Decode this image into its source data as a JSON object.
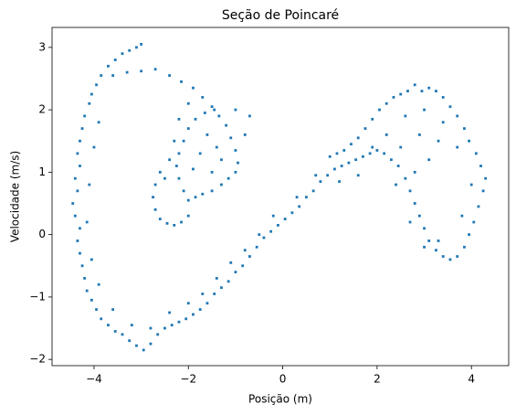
{
  "chart_data": {
    "type": "scatter",
    "title": "Seção de Poincaré",
    "xlabel": "Posição (m)",
    "ylabel": "Velocidade (m/s)",
    "color": "#1f77b4",
    "x": [
      -3.0,
      -3.1,
      -3.25,
      -3.4,
      -3.55,
      -3.7,
      -3.85,
      -3.95,
      -4.05,
      -4.1,
      -4.2,
      -4.25,
      -4.3,
      -4.35,
      -4.3,
      -4.4,
      -4.35,
      -4.45,
      -4.4,
      -4.3,
      -4.35,
      -4.3,
      -4.25,
      -4.2,
      -4.15,
      -4.05,
      -3.95,
      -3.85,
      -3.7,
      -3.55,
      -3.4,
      -3.25,
      -3.1,
      -2.95,
      -2.8,
      -2.65,
      -2.5,
      -2.35,
      -2.2,
      -2.05,
      -1.9,
      -1.75,
      -1.6,
      -1.45,
      -1.3,
      -1.15,
      -1.0,
      -0.85,
      -0.7,
      -0.55,
      -0.4,
      -0.25,
      -0.1,
      0.05,
      0.2,
      0.35,
      0.5,
      0.65,
      0.8,
      0.95,
      1.1,
      1.25,
      1.4,
      1.55,
      1.7,
      1.85,
      2.0,
      2.15,
      2.3,
      2.45,
      2.6,
      2.7,
      2.8,
      2.9,
      3.0,
      3.1,
      3.25,
      3.4,
      3.55,
      3.7,
      3.85,
      3.95,
      4.05,
      4.15,
      4.25,
      4.3,
      4.2,
      4.1,
      3.95,
      3.85,
      3.7,
      3.55,
      3.4,
      3.25,
      3.1,
      2.95,
      2.8,
      2.65,
      2.5,
      2.35,
      2.2,
      2.05,
      1.9,
      1.75,
      1.6,
      1.45,
      1.3,
      1.15,
      1.0,
      -3.9,
      -4.0,
      -4.1,
      -4.15,
      -4.05,
      -3.9,
      -3.6,
      -3.2,
      -2.8,
      -2.4,
      -2.0,
      -1.7,
      -1.4,
      -1.1,
      -0.8,
      -0.5,
      -0.2,
      0.3,
      0.7,
      1.2,
      1.6,
      2.4,
      2.7,
      3.0,
      3.3,
      3.8,
      4.0,
      3.7,
      3.4,
      3.0,
      2.6,
      2.2,
      1.9,
      2.5,
      2.8,
      3.1,
      2.9,
      3.3,
      -3.6,
      -3.3,
      -3.0,
      -2.7,
      -2.4,
      -2.15,
      -1.9,
      -1.7,
      -1.5,
      -1.35,
      -1.2,
      -1.1,
      -1.0,
      -0.95,
      -1.0,
      -1.15,
      -1.3,
      -1.5,
      -1.7,
      -1.85,
      -2.0,
      -2.1,
      -2.2,
      -2.25,
      -2.2,
      -2.1,
      -2.0,
      -1.85,
      -1.65,
      -1.45,
      -1.6,
      -1.4,
      -1.3,
      -1.5,
      -1.75,
      -1.9,
      -0.8,
      -0.7,
      -1.0,
      -2.6,
      -2.7,
      -2.75,
      -2.7,
      -2.6,
      -2.45,
      -2.3,
      -2.15,
      -2.0,
      -2.5,
      -2.4,
      -2.3,
      -2.2,
      -2.0
    ],
    "values": [
      3.05,
      3.0,
      2.95,
      2.9,
      2.8,
      2.7,
      2.55,
      2.4,
      2.25,
      2.1,
      1.9,
      1.7,
      1.5,
      1.3,
      1.1,
      0.9,
      0.7,
      0.5,
      0.3,
      0.1,
      -0.1,
      -0.3,
      -0.5,
      -0.7,
      -0.9,
      -1.05,
      -1.2,
      -1.35,
      -1.45,
      -1.55,
      -1.6,
      -1.7,
      -1.78,
      -1.85,
      -1.75,
      -1.6,
      -1.5,
      -1.45,
      -1.4,
      -1.35,
      -1.28,
      -1.2,
      -1.1,
      -0.95,
      -0.85,
      -0.75,
      -0.6,
      -0.5,
      -0.35,
      -0.2,
      -0.05,
      0.05,
      0.15,
      0.25,
      0.35,
      0.45,
      0.6,
      0.7,
      0.85,
      0.95,
      1.05,
      1.1,
      1.15,
      1.2,
      1.25,
      1.3,
      1.35,
      1.3,
      1.2,
      1.1,
      0.9,
      0.7,
      0.5,
      0.3,
      0.1,
      -0.1,
      -0.25,
      -0.35,
      -0.4,
      -0.35,
      -0.2,
      0.0,
      0.2,
      0.45,
      0.7,
      0.9,
      1.1,
      1.3,
      1.5,
      1.7,
      1.9,
      2.05,
      2.2,
      2.3,
      2.35,
      2.3,
      2.4,
      2.3,
      2.25,
      2.2,
      2.1,
      2.0,
      1.85,
      1.7,
      1.55,
      1.45,
      1.35,
      1.3,
      1.25,
      1.8,
      1.4,
      0.8,
      0.2,
      -0.4,
      -0.8,
      -1.2,
      -1.45,
      -1.5,
      -1.25,
      -1.1,
      -0.95,
      -0.7,
      -0.45,
      -0.25,
      0.0,
      0.3,
      0.6,
      0.95,
      0.85,
      0.95,
      0.8,
      0.2,
      -0.2,
      -0.1,
      0.3,
      0.8,
      1.4,
      1.8,
      2.0,
      1.9,
      1.6,
      1.4,
      1.4,
      1.0,
      1.2,
      1.6,
      1.5,
      2.55,
      2.6,
      2.62,
      2.65,
      2.55,
      2.45,
      2.35,
      2.2,
      2.05,
      1.9,
      1.75,
      1.55,
      1.35,
      1.15,
      1.0,
      0.9,
      0.8,
      0.7,
      0.65,
      0.6,
      0.55,
      0.7,
      0.9,
      1.1,
      1.3,
      1.5,
      1.7,
      1.85,
      1.95,
      2.0,
      1.6,
      1.4,
      1.2,
      1.0,
      1.3,
      1.05,
      1.6,
      1.9,
      2.0,
      1.0,
      0.8,
      0.6,
      0.4,
      0.25,
      0.18,
      0.15,
      0.2,
      0.3,
      0.9,
      1.2,
      1.5,
      1.85,
      2.1
    ],
    "xlim": [
      -4.89,
      4.79
    ],
    "xticks": [
      {
        "value": -4,
        "label": "−4"
      },
      {
        "value": -2,
        "label": "−2"
      },
      0,
      2,
      4
    ],
    "ylim": [
      -2.1,
      3.32
    ],
    "yticks": [
      {
        "value": -2,
        "label": "−2"
      },
      {
        "value": -1,
        "label": "−1"
      },
      0,
      1,
      2,
      3
    ]
  }
}
